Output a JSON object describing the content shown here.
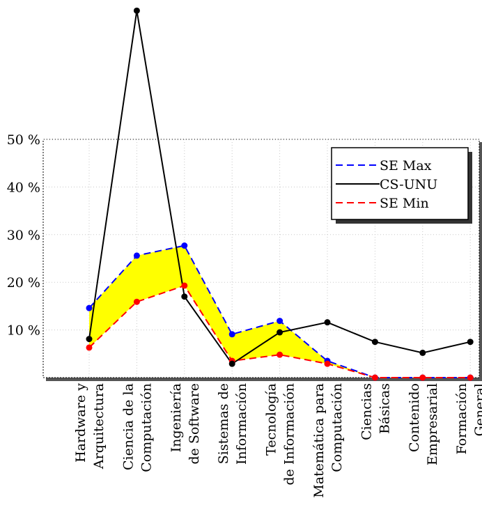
{
  "chart_data": {
    "type": "line",
    "categories": [
      [
        "Hardware y",
        "Arquitectura"
      ],
      [
        "Ciencia de la",
        "Computación"
      ],
      [
        "Ingeniería",
        "de Software"
      ],
      [
        "Sistemas de",
        "Información"
      ],
      [
        "Tecnología",
        "de Información"
      ],
      [
        "Matemática para",
        "Computación"
      ],
      [
        "Ciencias",
        "Básicas"
      ],
      [
        "Contenido",
        "Empresarial"
      ],
      [
        "Formación",
        "General"
      ]
    ],
    "yticks": [
      "10 %",
      "20 %",
      "30 %",
      "40 %",
      "50 %"
    ],
    "ytick_values": [
      10,
      20,
      30,
      40,
      50
    ],
    "ylim": [
      0,
      50
    ],
    "grid": true,
    "legend_position": "top-right",
    "series": [
      {
        "name": "SE Max",
        "color": "#0000ff",
        "dash": "dashed",
        "values": [
          14.6,
          25.6,
          27.7,
          9.1,
          11.9,
          3.5,
          0,
          0,
          0
        ]
      },
      {
        "name": "CS-UNU",
        "color": "#000000",
        "dash": "solid",
        "values": [
          8.1,
          77.0,
          17.0,
          2.9,
          9.5,
          11.6,
          7.5,
          5.2,
          7.5
        ]
      },
      {
        "name": "SE Min",
        "color": "#ff0000",
        "dash": "dashed",
        "values": [
          6.3,
          15.9,
          19.3,
          3.5,
          4.8,
          2.9,
          0,
          0,
          0
        ]
      }
    ],
    "band_fill": "#ffff00"
  }
}
